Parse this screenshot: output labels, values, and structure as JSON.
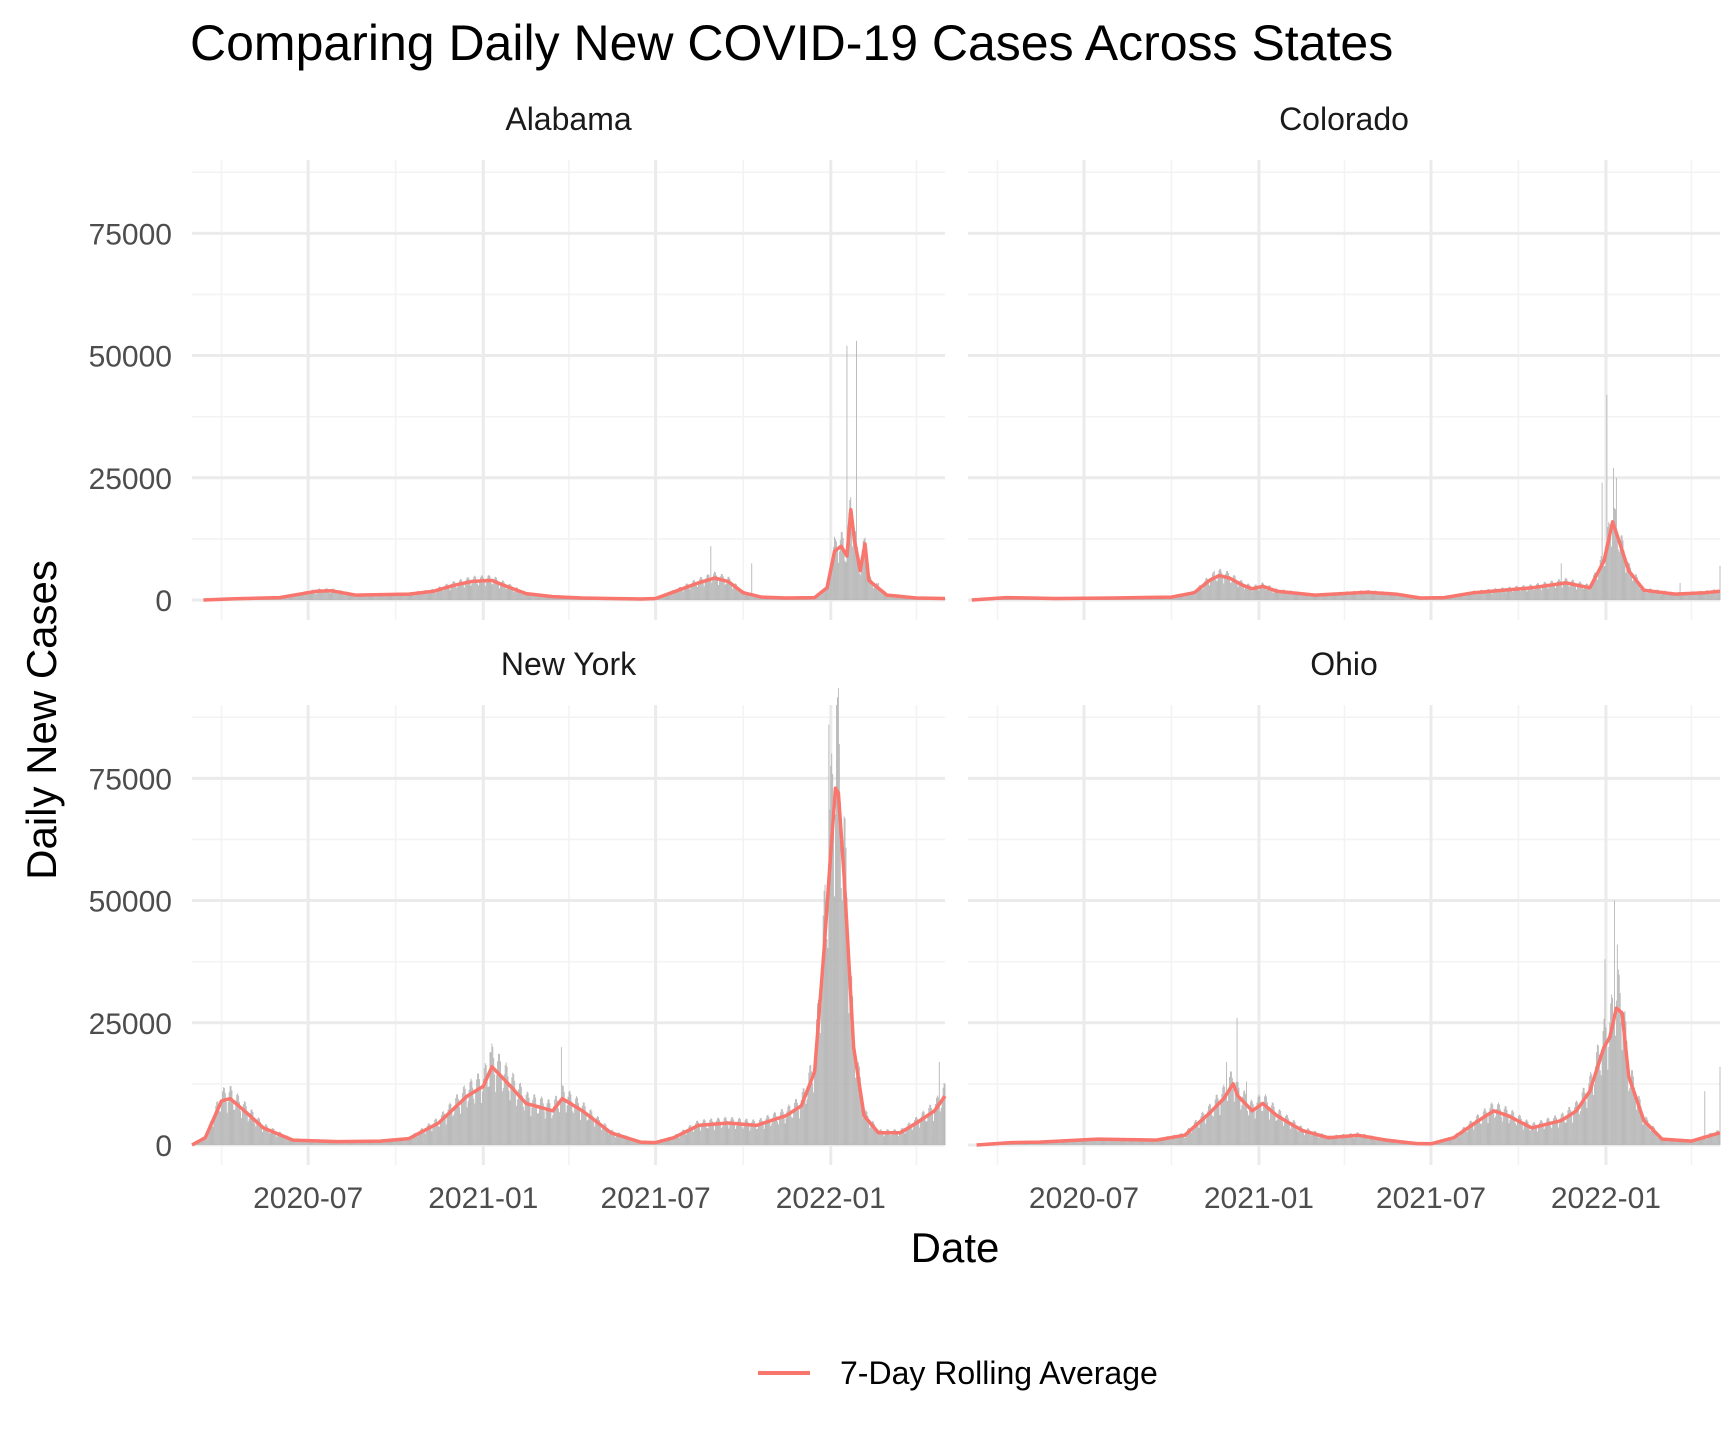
{
  "chart_data": {
    "type": "bar",
    "title": "Comparing Daily New COVID-19 Cases Across States",
    "xlabel": "Date",
    "ylabel": "Daily New Cases",
    "x_range": [
      "2020-03-01",
      "2022-05-01"
    ],
    "ylim": [
      0,
      90000
    ],
    "y_ticks": [
      0,
      25000,
      50000,
      75000
    ],
    "y_tick_labels": [
      "0",
      "25000",
      "50000",
      "75000"
    ],
    "x_ticks": [
      "2020-07-01",
      "2021-01-01",
      "2021-07-01",
      "2022-01-01"
    ],
    "x_tick_labels": [
      "2020-07",
      "2021-01",
      "2021-07",
      "2022-01"
    ],
    "grid": true,
    "legend_position": "bottom",
    "bar_color": "#b3b3b3",
    "line_color": "#f8766d",
    "series": [
      {
        "name": "Daily New Cases",
        "kind": "bar"
      },
      {
        "name": "7-Day Rolling Average",
        "kind": "line"
      }
    ],
    "panels": [
      {
        "name": "Alabama",
        "rolling_average": [
          [
            "2020-03-13",
            0
          ],
          [
            "2020-04-15",
            250
          ],
          [
            "2020-06-01",
            500
          ],
          [
            "2020-07-10",
            1800
          ],
          [
            "2020-07-25",
            1900
          ],
          [
            "2020-08-20",
            1000
          ],
          [
            "2020-09-15",
            1100
          ],
          [
            "2020-10-15",
            1200
          ],
          [
            "2020-11-10",
            1800
          ],
          [
            "2020-12-01",
            3000
          ],
          [
            "2020-12-20",
            3800
          ],
          [
            "2021-01-10",
            4000
          ],
          [
            "2021-01-20",
            3200
          ],
          [
            "2021-02-15",
            1300
          ],
          [
            "2021-03-15",
            700
          ],
          [
            "2021-04-15",
            400
          ],
          [
            "2021-05-15",
            300
          ],
          [
            "2021-06-15",
            200
          ],
          [
            "2021-07-01",
            300
          ],
          [
            "2021-07-25",
            2000
          ],
          [
            "2021-08-15",
            3500
          ],
          [
            "2021-09-01",
            4500
          ],
          [
            "2021-09-15",
            3800
          ],
          [
            "2021-10-01",
            1500
          ],
          [
            "2021-10-20",
            600
          ],
          [
            "2021-11-15",
            400
          ],
          [
            "2021-12-15",
            500
          ],
          [
            "2021-12-28",
            2500
          ],
          [
            "2022-01-05",
            10000
          ],
          [
            "2022-01-12",
            11000
          ],
          [
            "2022-01-18",
            9000
          ],
          [
            "2022-01-22",
            18500
          ],
          [
            "2022-01-26",
            12000
          ],
          [
            "2022-02-01",
            6000
          ],
          [
            "2022-02-06",
            11500
          ],
          [
            "2022-02-10",
            4000
          ],
          [
            "2022-03-01",
            1000
          ],
          [
            "2022-04-01",
            400
          ],
          [
            "2022-05-01",
            300
          ]
        ],
        "daily_peaks": [
          [
            "2021-08-28",
            11000
          ],
          [
            "2021-10-10",
            7500
          ],
          [
            "2022-01-06",
            12500
          ],
          [
            "2022-01-18",
            52000
          ],
          [
            "2022-01-28",
            53000
          ],
          [
            "2022-02-05",
            12500
          ],
          [
            "2022-02-20",
            3500
          ]
        ]
      },
      {
        "name": "Colorado",
        "rolling_average": [
          [
            "2020-03-05",
            0
          ],
          [
            "2020-04-10",
            500
          ],
          [
            "2020-06-01",
            300
          ],
          [
            "2020-08-01",
            400
          ],
          [
            "2020-10-01",
            600
          ],
          [
            "2020-10-25",
            1500
          ],
          [
            "2020-11-10",
            4000
          ],
          [
            "2020-11-20",
            5000
          ],
          [
            "2020-12-01",
            4500
          ],
          [
            "2020-12-15",
            3000
          ],
          [
            "2020-12-25",
            2300
          ],
          [
            "2021-01-05",
            2800
          ],
          [
            "2021-01-20",
            1800
          ],
          [
            "2021-03-01",
            1000
          ],
          [
            "2021-04-25",
            1600
          ],
          [
            "2021-05-25",
            1200
          ],
          [
            "2021-06-20",
            400
          ],
          [
            "2021-07-15",
            500
          ],
          [
            "2021-08-15",
            1500
          ],
          [
            "2021-09-15",
            2000
          ],
          [
            "2021-10-15",
            2500
          ],
          [
            "2021-11-20",
            3500
          ],
          [
            "2021-12-15",
            2500
          ],
          [
            "2021-12-30",
            8000
          ],
          [
            "2022-01-08",
            16000
          ],
          [
            "2022-01-15",
            12000
          ],
          [
            "2022-01-25",
            6000
          ],
          [
            "2022-02-10",
            2000
          ],
          [
            "2022-03-15",
            1200
          ],
          [
            "2022-04-15",
            1500
          ],
          [
            "2022-05-01",
            1800
          ]
        ],
        "daily_peaks": [
          [
            "2020-11-15",
            6000
          ],
          [
            "2021-11-15",
            7500
          ],
          [
            "2021-12-28",
            24000
          ],
          [
            "2022-01-02",
            42000
          ],
          [
            "2022-01-09",
            27000
          ],
          [
            "2022-01-12",
            25000
          ],
          [
            "2022-03-20",
            3500
          ],
          [
            "2022-05-01",
            7000
          ]
        ]
      },
      {
        "name": "New York",
        "rolling_average": [
          [
            "2020-03-01",
            0
          ],
          [
            "2020-03-15",
            1500
          ],
          [
            "2020-04-01",
            9000
          ],
          [
            "2020-04-10",
            9500
          ],
          [
            "2020-04-25",
            7000
          ],
          [
            "2020-05-15",
            3500
          ],
          [
            "2020-06-15",
            1000
          ],
          [
            "2020-08-01",
            700
          ],
          [
            "2020-09-15",
            800
          ],
          [
            "2020-10-15",
            1300
          ],
          [
            "2020-11-15",
            4500
          ],
          [
            "2020-12-15",
            10000
          ],
          [
            "2021-01-01",
            12000
          ],
          [
            "2021-01-10",
            16000
          ],
          [
            "2021-01-25",
            13000
          ],
          [
            "2021-02-15",
            8500
          ],
          [
            "2021-03-15",
            7000
          ],
          [
            "2021-03-25",
            9500
          ],
          [
            "2021-04-15",
            7000
          ],
          [
            "2021-05-15",
            2500
          ],
          [
            "2021-06-15",
            600
          ],
          [
            "2021-07-01",
            500
          ],
          [
            "2021-07-20",
            1500
          ],
          [
            "2021-08-15",
            4000
          ],
          [
            "2021-09-15",
            4500
          ],
          [
            "2021-10-15",
            4000
          ],
          [
            "2021-11-15",
            6000
          ],
          [
            "2021-12-01",
            8000
          ],
          [
            "2021-12-15",
            15000
          ],
          [
            "2021-12-25",
            40000
          ],
          [
            "2022-01-01",
            60000
          ],
          [
            "2022-01-06",
            73000
          ],
          [
            "2022-01-09",
            72000
          ],
          [
            "2022-01-15",
            55000
          ],
          [
            "2022-01-25",
            20000
          ],
          [
            "2022-02-05",
            6000
          ],
          [
            "2022-02-20",
            2500
          ],
          [
            "2022-03-15",
            2500
          ],
          [
            "2022-04-01",
            4500
          ],
          [
            "2022-04-20",
            7000
          ],
          [
            "2022-05-01",
            10000
          ]
        ],
        "daily_peaks": [
          [
            "2020-04-10",
            12000
          ],
          [
            "2021-01-08",
            19000
          ],
          [
            "2021-03-24",
            20000
          ],
          [
            "2021-12-30",
            86000
          ],
          [
            "2022-01-07",
            90000
          ],
          [
            "2022-01-10",
            82000
          ],
          [
            "2022-04-25",
            17000
          ]
        ]
      },
      {
        "name": "Ohio",
        "rolling_average": [
          [
            "2020-03-10",
            0
          ],
          [
            "2020-04-15",
            500
          ],
          [
            "2020-05-15",
            600
          ],
          [
            "2020-07-15",
            1200
          ],
          [
            "2020-09-15",
            1000
          ],
          [
            "2020-10-15",
            2000
          ],
          [
            "2020-11-10",
            6500
          ],
          [
            "2020-11-25",
            9500
          ],
          [
            "2020-12-05",
            12500
          ],
          [
            "2020-12-10",
            10000
          ],
          [
            "2020-12-25",
            7000
          ],
          [
            "2021-01-05",
            8500
          ],
          [
            "2021-01-20",
            6000
          ],
          [
            "2021-02-15",
            3000
          ],
          [
            "2021-03-15",
            1500
          ],
          [
            "2021-04-15",
            2000
          ],
          [
            "2021-05-15",
            1000
          ],
          [
            "2021-06-15",
            300
          ],
          [
            "2021-07-01",
            250
          ],
          [
            "2021-07-25",
            1500
          ],
          [
            "2021-08-20",
            5000
          ],
          [
            "2021-09-05",
            7000
          ],
          [
            "2021-09-20",
            6000
          ],
          [
            "2021-10-15",
            3500
          ],
          [
            "2021-11-15",
            5000
          ],
          [
            "2021-12-01",
            7000
          ],
          [
            "2021-12-15",
            11000
          ],
          [
            "2021-12-30",
            20000
          ],
          [
            "2022-01-05",
            22000
          ],
          [
            "2022-01-12",
            28000
          ],
          [
            "2022-01-18",
            27000
          ],
          [
            "2022-01-25",
            14000
          ],
          [
            "2022-02-10",
            5000
          ],
          [
            "2022-03-01",
            1200
          ],
          [
            "2022-04-01",
            800
          ],
          [
            "2022-05-01",
            2500
          ]
        ],
        "daily_peaks": [
          [
            "2020-11-28",
            17000
          ],
          [
            "2020-12-09",
            26000
          ],
          [
            "2020-12-19",
            13000
          ],
          [
            "2021-12-31",
            38000
          ],
          [
            "2022-01-10",
            50000
          ],
          [
            "2022-01-13",
            41000
          ],
          [
            "2022-04-15",
            11000
          ],
          [
            "2022-05-01",
            16000
          ]
        ]
      }
    ],
    "legend": {
      "label": "7-Day Rolling Average"
    }
  }
}
